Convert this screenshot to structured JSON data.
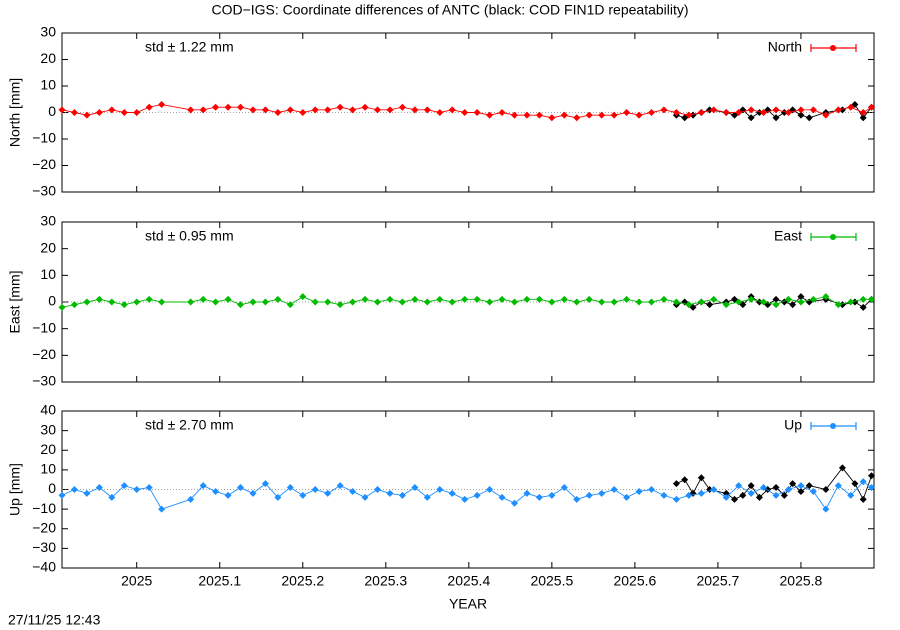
{
  "title": "COD−IGS: Coordinate differences of ANTC (black: COD FIN1D repeatability)",
  "timestamp": "27/11/25 12:43",
  "chart_data": [
    {
      "type": "line",
      "ylabel": "North [mm]",
      "annotation": "std ± 1.22 mm",
      "annotation_color": "#ff0000",
      "legend": "top-right",
      "xlim": [
        2024.91,
        2025.888
      ],
      "xticks": [
        2025,
        2025.1,
        2025.2,
        2025.3,
        2025.4,
        2025.5,
        2025.6,
        2025.7,
        2025.8
      ],
      "ylim": [
        -30,
        30
      ],
      "yticks": [
        {
          "value": -30,
          "label": "−30"
        },
        {
          "value": -20,
          "label": "−20"
        },
        {
          "value": -10,
          "label": "−10"
        },
        0,
        10,
        20,
        30
      ],
      "series": [
        {
          "color": "#000000",
          "x": [
            2025.65,
            2025.66,
            2025.67,
            2025.68,
            2025.69,
            2025.71,
            2025.72,
            2025.73,
            2025.74,
            2025.75,
            2025.76,
            2025.77,
            2025.78,
            2025.79,
            2025.8,
            2025.81,
            2025.83,
            2025.85,
            2025.865,
            2025.875,
            2025.885
          ],
          "values": [
            -1,
            -2,
            -1,
            0,
            1,
            0,
            -1,
            1,
            -2,
            0,
            1,
            -2,
            0,
            1,
            -1,
            -2,
            0,
            1,
            3,
            -2,
            2
          ]
        },
        {
          "name": "North",
          "color": "#ff0000",
          "x": [
            2024.91,
            2024.925,
            2024.94,
            2024.955,
            2024.97,
            2024.985,
            2025.0,
            2025.015,
            2025.03,
            2025.065,
            2025.08,
            2025.095,
            2025.11,
            2025.125,
            2025.14,
            2025.155,
            2025.17,
            2025.185,
            2025.2,
            2025.215,
            2025.23,
            2025.245,
            2025.26,
            2025.275,
            2025.29,
            2025.305,
            2025.32,
            2025.335,
            2025.35,
            2025.365,
            2025.38,
            2025.395,
            2025.41,
            2025.425,
            2025.44,
            2025.455,
            2025.47,
            2025.485,
            2025.5,
            2025.515,
            2025.53,
            2025.545,
            2025.56,
            2025.575,
            2025.59,
            2025.605,
            2025.62,
            2025.635,
            2025.65,
            2025.665,
            2025.68,
            2025.695,
            2025.71,
            2025.725,
            2025.74,
            2025.755,
            2025.77,
            2025.785,
            2025.8,
            2025.815,
            2025.83,
            2025.845,
            2025.86,
            2025.875,
            2025.885
          ],
          "values": [
            1,
            0,
            -1,
            0,
            1,
            0,
            0,
            2,
            3,
            1,
            1,
            2,
            2,
            2,
            1,
            1,
            0,
            1,
            0,
            1,
            1,
            2,
            1,
            2,
            1,
            1,
            2,
            1,
            1,
            0,
            1,
            0,
            0,
            -1,
            0,
            -1,
            -1,
            -1,
            -2,
            -1,
            -2,
            -1,
            -1,
            -1,
            0,
            -1,
            0,
            1,
            0,
            -1,
            0,
            1,
            0,
            0,
            1,
            0,
            1,
            0,
            1,
            1,
            -1,
            1,
            2,
            0,
            2
          ]
        }
      ]
    },
    {
      "type": "line",
      "ylabel": "East [mm]",
      "annotation": "std ± 0.95 mm",
      "annotation_color": "#00bb00",
      "legend": "top-right",
      "xlim": [
        2024.91,
        2025.888
      ],
      "xticks": [
        2025,
        2025.1,
        2025.2,
        2025.3,
        2025.4,
        2025.5,
        2025.6,
        2025.7,
        2025.8
      ],
      "ylim": [
        -30,
        30
      ],
      "yticks": [
        {
          "value": -30,
          "label": "−30"
        },
        {
          "value": -20,
          "label": "−20"
        },
        {
          "value": -10,
          "label": "−10"
        },
        0,
        10,
        20,
        30
      ],
      "series": [
        {
          "color": "#000000",
          "x": [
            2025.65,
            2025.66,
            2025.67,
            2025.68,
            2025.69,
            2025.71,
            2025.72,
            2025.73,
            2025.74,
            2025.75,
            2025.76,
            2025.77,
            2025.78,
            2025.79,
            2025.8,
            2025.81,
            2025.83,
            2025.85,
            2025.865,
            2025.875,
            2025.885
          ],
          "values": [
            -1,
            0,
            -2,
            0,
            -1,
            0,
            1,
            -1,
            2,
            0,
            -1,
            1,
            0,
            -1,
            2,
            0,
            1,
            -1,
            0,
            -2,
            1
          ]
        },
        {
          "name": "East",
          "color": "#00bb00",
          "x": [
            2024.91,
            2024.925,
            2024.94,
            2024.955,
            2024.97,
            2024.985,
            2025.0,
            2025.015,
            2025.03,
            2025.065,
            2025.08,
            2025.095,
            2025.11,
            2025.125,
            2025.14,
            2025.155,
            2025.17,
            2025.185,
            2025.2,
            2025.215,
            2025.23,
            2025.245,
            2025.26,
            2025.275,
            2025.29,
            2025.305,
            2025.32,
            2025.335,
            2025.35,
            2025.365,
            2025.38,
            2025.395,
            2025.41,
            2025.425,
            2025.44,
            2025.455,
            2025.47,
            2025.485,
            2025.5,
            2025.515,
            2025.53,
            2025.545,
            2025.56,
            2025.575,
            2025.59,
            2025.605,
            2025.62,
            2025.635,
            2025.65,
            2025.665,
            2025.68,
            2025.695,
            2025.71,
            2025.725,
            2025.74,
            2025.755,
            2025.77,
            2025.785,
            2025.8,
            2025.815,
            2025.83,
            2025.845,
            2025.86,
            2025.875,
            2025.885
          ],
          "values": [
            -2,
            -1,
            0,
            1,
            0,
            -1,
            0,
            1,
            0,
            0,
            1,
            0,
            1,
            -1,
            0,
            0,
            1,
            -1,
            2,
            0,
            0,
            -1,
            0,
            1,
            0,
            1,
            0,
            1,
            0,
            1,
            0,
            1,
            1,
            0,
            1,
            0,
            1,
            1,
            0,
            1,
            0,
            1,
            0,
            0,
            1,
            0,
            0,
            1,
            0,
            -1,
            0,
            1,
            -1,
            0,
            1,
            0,
            -1,
            1,
            0,
            1,
            2,
            -1,
            0,
            1,
            1
          ]
        }
      ]
    },
    {
      "type": "line",
      "ylabel": "Up [mm]",
      "xlabel": "YEAR",
      "annotation": "std ± 2.70 mm",
      "annotation_color": "#1e8fff",
      "legend": "top-right",
      "xlim": [
        2024.91,
        2025.888
      ],
      "xticks": [
        2025,
        2025.1,
        2025.2,
        2025.3,
        2025.4,
        2025.5,
        2025.6,
        2025.7,
        2025.8
      ],
      "ylim": [
        -40,
        40
      ],
      "yticks": [
        {
          "value": -40,
          "label": "−40"
        },
        {
          "value": -30,
          "label": "−30"
        },
        {
          "value": -20,
          "label": "−20"
        },
        {
          "value": -10,
          "label": "−10"
        },
        0,
        10,
        20,
        30,
        40
      ],
      "series": [
        {
          "color": "#000000",
          "x": [
            2025.65,
            2025.66,
            2025.67,
            2025.68,
            2025.69,
            2025.71,
            2025.72,
            2025.73,
            2025.74,
            2025.75,
            2025.76,
            2025.77,
            2025.78,
            2025.79,
            2025.8,
            2025.81,
            2025.83,
            2025.85,
            2025.865,
            2025.875,
            2025.885
          ],
          "values": [
            3,
            5,
            -2,
            6,
            0,
            -2,
            -5,
            -3,
            2,
            -4,
            0,
            1,
            -3,
            3,
            -1,
            2,
            0,
            11,
            3,
            -5,
            7
          ]
        },
        {
          "name": "Up",
          "color": "#1e8fff",
          "x": [
            2024.91,
            2024.925,
            2024.94,
            2024.955,
            2024.97,
            2024.985,
            2025.0,
            2025.015,
            2025.03,
            2025.065,
            2025.08,
            2025.095,
            2025.11,
            2025.125,
            2025.14,
            2025.155,
            2025.17,
            2025.185,
            2025.2,
            2025.215,
            2025.23,
            2025.245,
            2025.26,
            2025.275,
            2025.29,
            2025.305,
            2025.32,
            2025.335,
            2025.35,
            2025.365,
            2025.38,
            2025.395,
            2025.41,
            2025.425,
            2025.44,
            2025.455,
            2025.47,
            2025.485,
            2025.5,
            2025.515,
            2025.53,
            2025.545,
            2025.56,
            2025.575,
            2025.59,
            2025.605,
            2025.62,
            2025.635,
            2025.65,
            2025.665,
            2025.68,
            2025.695,
            2025.71,
            2025.725,
            2025.74,
            2025.755,
            2025.77,
            2025.785,
            2025.8,
            2025.815,
            2025.83,
            2025.845,
            2025.86,
            2025.875,
            2025.885
          ],
          "values": [
            -3,
            0,
            -2,
            1,
            -4,
            2,
            0,
            1,
            -10,
            -5,
            2,
            -1,
            -3,
            1,
            -2,
            3,
            -4,
            1,
            -3,
            0,
            -2,
            2,
            -1,
            -4,
            0,
            -2,
            -3,
            1,
            -4,
            0,
            -2,
            -5,
            -3,
            0,
            -4,
            -7,
            -2,
            -4,
            -3,
            1,
            -5,
            -3,
            -2,
            0,
            -4,
            -1,
            0,
            -3,
            -5,
            -3,
            -2,
            0,
            -4,
            2,
            -2,
            1,
            -3,
            0,
            2,
            -1,
            -10,
            2,
            -3,
            4,
            1
          ]
        }
      ]
    }
  ]
}
